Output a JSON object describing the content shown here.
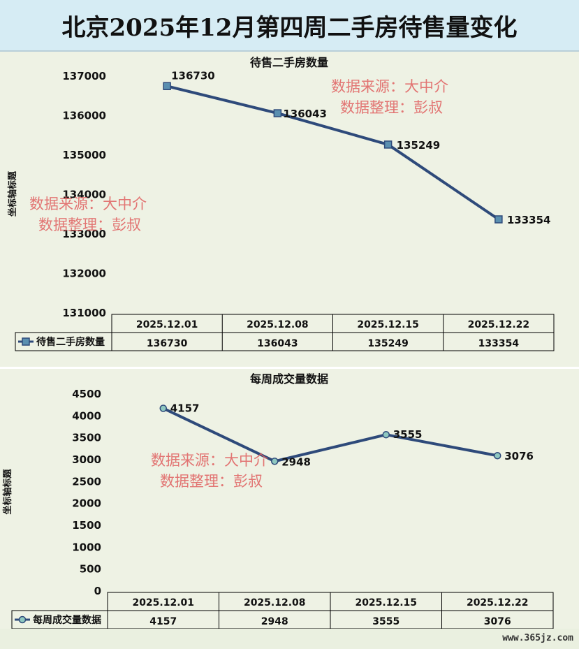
{
  "banner_title": "北京2025年12月第四周二手房待售量变化",
  "watermark": {
    "line1": "数据来源：大中介",
    "line2": "数据整理：彭叔"
  },
  "footer_text": "www.365jz.com",
  "colors": {
    "line": "#2e4a7a",
    "marker1": "#5a8fb0",
    "marker2": "#8fc8c0",
    "watermark": "#e06060",
    "grid": "#000000"
  },
  "chart_data": [
    {
      "type": "line",
      "title": "待售二手房数量",
      "xlabel": "",
      "ylabel": "坐标轴标题",
      "categories": [
        "2025.12.01",
        "2025.12.08",
        "2025.12.15",
        "2025.12.22"
      ],
      "series": [
        {
          "name": "待售二手房数量",
          "values": [
            136730,
            136043,
            135249,
            133354
          ]
        }
      ],
      "ylim": [
        131000,
        137000
      ],
      "yticks": [
        131000,
        132000,
        133000,
        134000,
        135000,
        136000,
        137000
      ],
      "grid": false,
      "data_table": true
    },
    {
      "type": "line",
      "title": "每周成交量数据",
      "xlabel": "",
      "ylabel": "坐标轴标题",
      "categories": [
        "2025.12.01",
        "2025.12.08",
        "2025.12.15",
        "2025.12.22"
      ],
      "series": [
        {
          "name": "每周成交量数据",
          "values": [
            4157,
            2948,
            3555,
            3076
          ]
        }
      ],
      "ylim": [
        0,
        4500
      ],
      "yticks": [
        0,
        500,
        1000,
        1500,
        2000,
        2500,
        3000,
        3500,
        4000,
        4500
      ],
      "grid": false,
      "data_table": true
    }
  ]
}
